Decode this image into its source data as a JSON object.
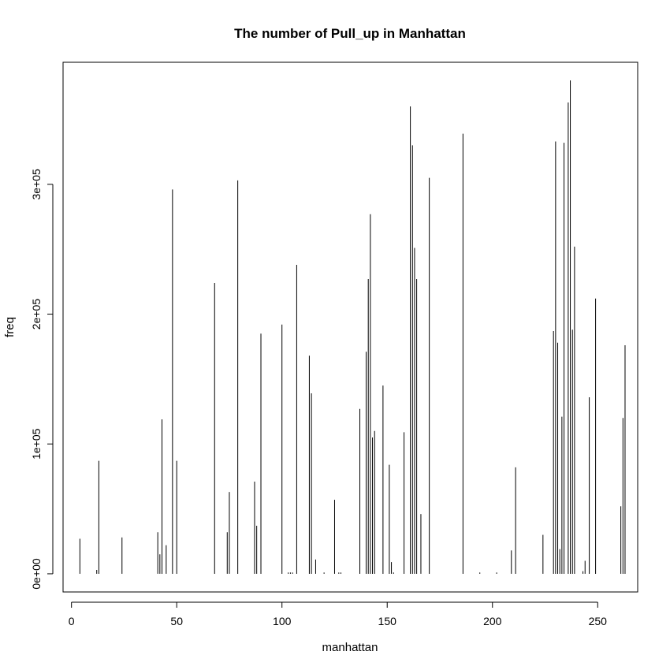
{
  "chart_data": {
    "type": "bar",
    "title": "The number of Pull_up in Manhattan",
    "xlabel": "manhattan",
    "ylabel": "freq",
    "xlim": [
      -4,
      269
    ],
    "ylim": [
      -14000,
      394000
    ],
    "grid": false,
    "legend": "none",
    "x_ticks": [
      {
        "value": 0,
        "label": "0"
      },
      {
        "value": 50,
        "label": "50"
      },
      {
        "value": 100,
        "label": "100"
      },
      {
        "value": 150,
        "label": "150"
      },
      {
        "value": 200,
        "label": "200"
      },
      {
        "value": 250,
        "label": "250"
      }
    ],
    "y_ticks": [
      {
        "value": 0,
        "label": "0e+00"
      },
      {
        "value": 100000,
        "label": "1e+05"
      },
      {
        "value": 200000,
        "label": "2e+05"
      },
      {
        "value": 300000,
        "label": "3e+05"
      }
    ],
    "series": [
      {
        "values": [
          [
            4,
            27000
          ],
          [
            12,
            3000
          ],
          [
            13,
            87000
          ],
          [
            24,
            28000
          ],
          [
            41,
            32000
          ],
          [
            42,
            15000
          ],
          [
            43,
            119000
          ],
          [
            45,
            22000
          ],
          [
            48,
            296000
          ],
          [
            50,
            87000
          ],
          [
            68,
            224000
          ],
          [
            74,
            32000
          ],
          [
            75,
            63000
          ],
          [
            79,
            303000
          ],
          [
            87,
            71000
          ],
          [
            88,
            37000
          ],
          [
            90,
            185000
          ],
          [
            100,
            192000
          ],
          [
            103,
            1000
          ],
          [
            104,
            1000
          ],
          [
            105,
            1000
          ],
          [
            107,
            238000
          ],
          [
            113,
            168000
          ],
          [
            114,
            139000
          ],
          [
            116,
            11000
          ],
          [
            120,
            1000
          ],
          [
            125,
            57000
          ],
          [
            127,
            1000
          ],
          [
            128,
            1000
          ],
          [
            137,
            127000
          ],
          [
            140,
            171000
          ],
          [
            141,
            227000
          ],
          [
            142,
            277000
          ],
          [
            143,
            105000
          ],
          [
            144,
            110000
          ],
          [
            148,
            145000
          ],
          [
            151,
            84000
          ],
          [
            152,
            9000
          ],
          [
            153,
            1000
          ],
          [
            158,
            109000
          ],
          [
            161,
            360000
          ],
          [
            162,
            330000
          ],
          [
            163,
            251000
          ],
          [
            164,
            227000
          ],
          [
            166,
            46000
          ],
          [
            170,
            305000
          ],
          [
            186,
            339000
          ],
          [
            194,
            1000
          ],
          [
            202,
            1000
          ],
          [
            209,
            18000
          ],
          [
            211,
            82000
          ],
          [
            224,
            30000
          ],
          [
            229,
            187000
          ],
          [
            230,
            333000
          ],
          [
            231,
            178000
          ],
          [
            232,
            19000
          ],
          [
            233,
            121000
          ],
          [
            234,
            332000
          ],
          [
            236,
            363000
          ],
          [
            237,
            380000
          ],
          [
            238,
            188000
          ],
          [
            239,
            252000
          ],
          [
            243,
            2000
          ],
          [
            244,
            10000
          ],
          [
            246,
            136000
          ],
          [
            249,
            212000
          ],
          [
            261,
            52000
          ],
          [
            262,
            120000
          ],
          [
            263,
            176000
          ]
        ]
      }
    ]
  }
}
